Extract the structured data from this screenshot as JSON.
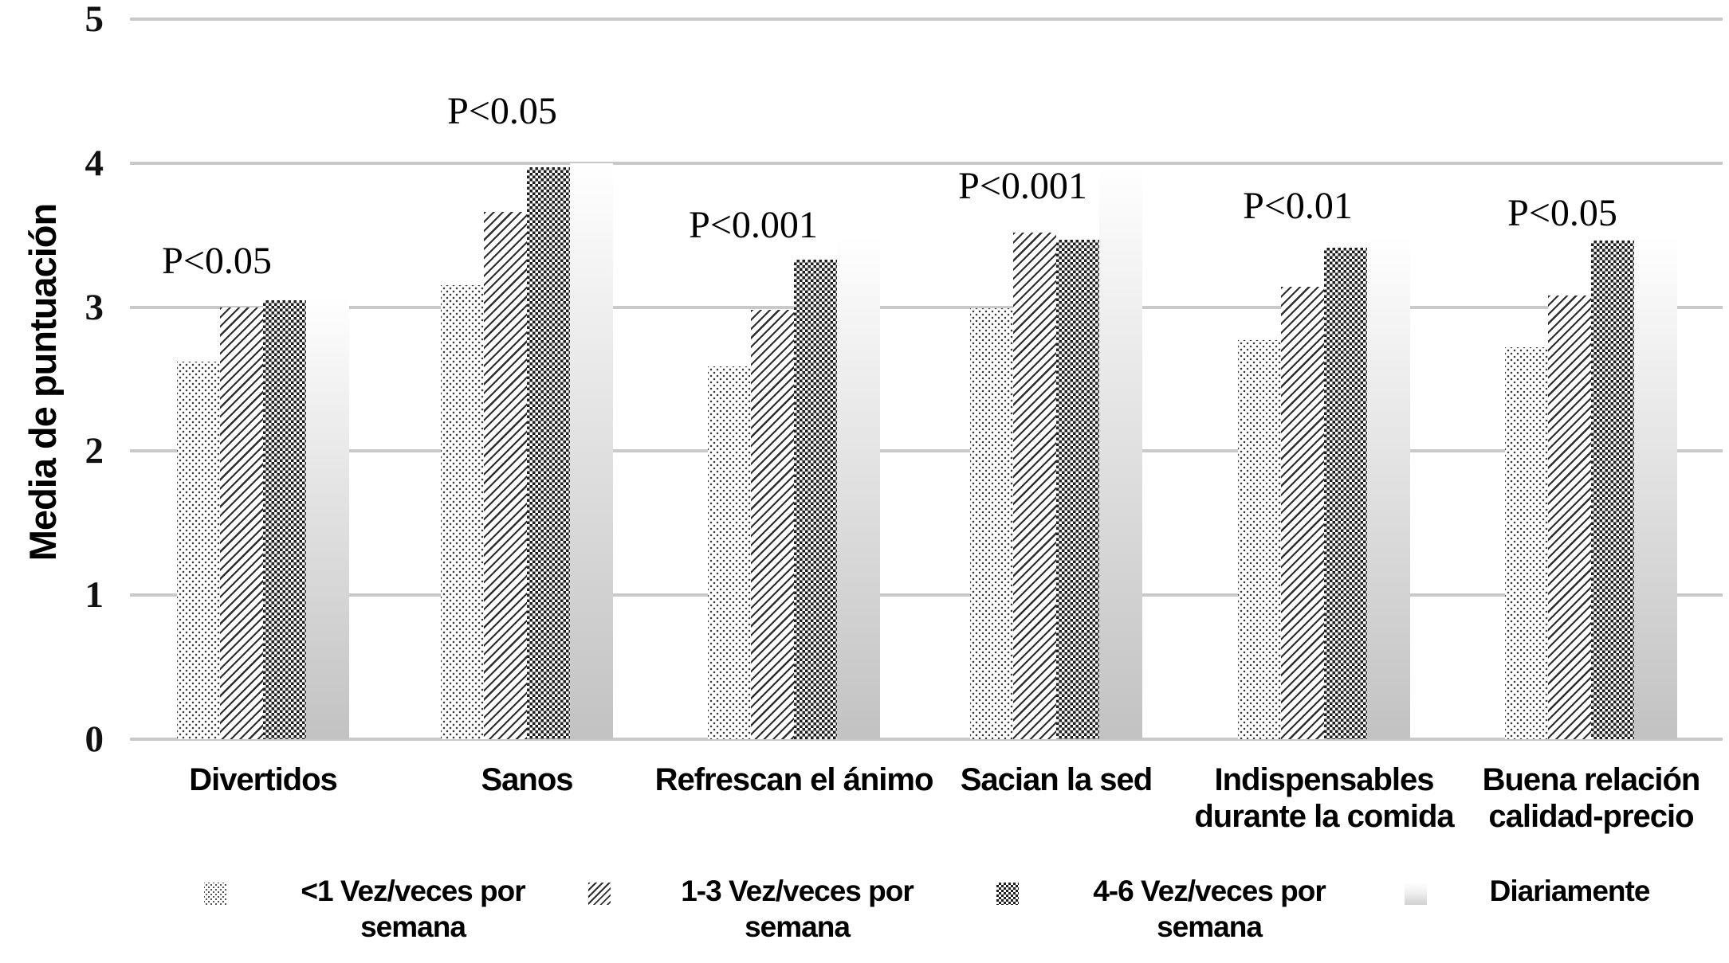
{
  "chart_data": {
    "type": "bar",
    "title": "",
    "xlabel": "",
    "ylabel": "Media de puntuación",
    "ylim": [
      0,
      5
    ],
    "ytick_labels": [
      "0",
      "1",
      "2",
      "3",
      "4",
      "5"
    ],
    "grid": true,
    "legend_position": "bottom",
    "categories": [
      "Divertidos",
      "Sanos",
      "Refrescan el ánimo",
      "Sacian la sed",
      "Indispensables durante la comida",
      "Buena relación calidad-precio"
    ],
    "category_display_lines": [
      [
        "Divertidos"
      ],
      [
        "Sanos"
      ],
      [
        "Refrescan el ánimo"
      ],
      [
        "Sacian la sed"
      ],
      [
        "Indispensables",
        "durante la comida"
      ],
      [
        "Buena relación",
        "calidad-precio"
      ]
    ],
    "series": [
      {
        "name": "<1 Vez/veces por semana",
        "pattern": "fine-dots",
        "values": [
          2.62,
          3.15,
          2.59,
          2.99,
          2.77,
          2.72
        ]
      },
      {
        "name": "1-3 Vez/veces por semana",
        "pattern": "diagonal-stripes",
        "values": [
          3.0,
          3.66,
          2.98,
          3.52,
          3.14,
          3.08
        ]
      },
      {
        "name": "4-6 Vez/veces por semana",
        "pattern": "checkerboard",
        "values": [
          3.05,
          3.97,
          3.33,
          3.47,
          3.41,
          3.46
        ]
      },
      {
        "name": "Diariamente",
        "pattern": "white-to-gray-gradient",
        "values": [
          3.08,
          4.0,
          3.5,
          3.98,
          3.5,
          3.5
        ]
      }
    ],
    "annotations": [
      {
        "category": "Divertidos",
        "label": "P<0.05"
      },
      {
        "category": "Sanos",
        "label": "P<0.05"
      },
      {
        "category": "Refrescan el ánimo",
        "label": "P<0.001"
      },
      {
        "category": "Sacian la sed",
        "label": "P<0.001"
      },
      {
        "category": "Indispensables durante la comida",
        "label": "P<0.01"
      },
      {
        "category": "Buena relación calidad-precio",
        "label": "P<0.05"
      }
    ]
  },
  "legend": {
    "items_display_lines": [
      [
        "<1 Vez/veces por",
        "semana"
      ],
      [
        "1-3 Vez/veces por",
        "semana"
      ],
      [
        "4-6 Vez/veces por",
        "semana"
      ],
      [
        "Diariamente"
      ]
    ]
  },
  "colors": {
    "background": "#ffffff",
    "gridline": "#c9c9c9",
    "pattern_ink": "#2e2e2e",
    "gradient_bar_top": "#ffffff",
    "gradient_bar_bottom": "#c2c2c2",
    "text": "#000000"
  }
}
